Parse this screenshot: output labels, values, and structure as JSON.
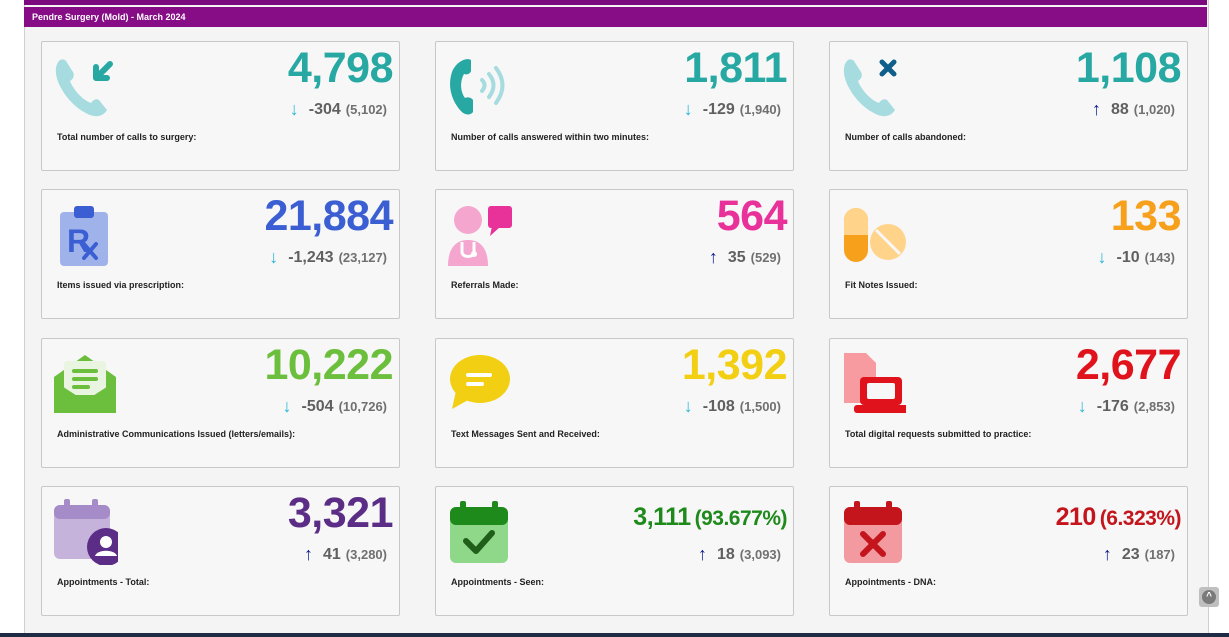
{
  "header": {
    "title": "Pendre Surgery (Mold) - March 2024"
  },
  "colors": {
    "header": "#860d86",
    "arrow_down": "#29b6d6",
    "arrow_up": "#0b1c8c"
  },
  "cards": [
    {
      "id": "calls-total",
      "icon": "incoming-call-icon",
      "value": "4,798",
      "pct": "",
      "direction": "down",
      "change": "-304",
      "previous": "(5,102)",
      "label": "Total number of calls to surgery:",
      "color": "#27a8a3"
    },
    {
      "id": "calls-answered",
      "icon": "ringing-phone-icon",
      "value": "1,811",
      "pct": "",
      "direction": "down",
      "change": "-129",
      "previous": "(1,940)",
      "label": "Number of calls answered within two minutes:",
      "color": "#27a8a3"
    },
    {
      "id": "calls-abandoned",
      "icon": "call-abandoned-icon",
      "value": "1,108",
      "pct": "",
      "direction": "up",
      "change": "88",
      "previous": "(1,020)",
      "label": "Number of calls abandoned:",
      "color": "#27a8a3"
    },
    {
      "id": "prescriptions",
      "icon": "prescription-clipboard-icon",
      "value": "21,884",
      "pct": "",
      "direction": "down",
      "change": "-1,243",
      "previous": "(23,127)",
      "label": "Items issued via prescription:",
      "color": "#3b5fd3"
    },
    {
      "id": "referrals",
      "icon": "doctor-chat-icon",
      "value": "564",
      "pct": "",
      "direction": "up",
      "change": "35",
      "previous": "(529)",
      "label": "Referrals Made:",
      "color": "#e8329a"
    },
    {
      "id": "fit-notes",
      "icon": "pills-icon",
      "value": "133",
      "pct": "",
      "direction": "down",
      "change": "-10",
      "previous": "(143)",
      "label": "Fit Notes Issued:",
      "color": "#f7a01c"
    },
    {
      "id": "admin-comms",
      "icon": "envelope-letter-icon",
      "value": "10,222",
      "pct": "",
      "direction": "down",
      "change": "-504",
      "previous": "(10,726)",
      "label": "Administrative Communications Issued (letters/emails):",
      "color": "#6bbf3c"
    },
    {
      "id": "text-messages",
      "icon": "speech-bubble-icon",
      "value": "1,392",
      "pct": "",
      "direction": "down",
      "change": "-108",
      "previous": "(1,500)",
      "label": "Text Messages Sent and Received:",
      "color": "#f2cf13"
    },
    {
      "id": "digital-requests",
      "icon": "laptop-document-icon",
      "value": "2,677",
      "pct": "",
      "direction": "down",
      "change": "-176",
      "previous": "(2,853)",
      "label": "Total digital requests submitted to practice:",
      "color": "#e0121c"
    },
    {
      "id": "appt-total",
      "icon": "calendar-user-icon",
      "value": "3,321",
      "pct": "",
      "direction": "up",
      "change": "41",
      "previous": "(3,280)",
      "label": "Appointments - Total:",
      "color": "#5b2d86"
    },
    {
      "id": "appt-seen",
      "icon": "calendar-check-icon",
      "value": "3,111",
      "pct": "(93.677%)",
      "direction": "up",
      "change": "18",
      "previous": "(3,093)",
      "label": "Appointments - Seen:",
      "color": "#1f8a1c"
    },
    {
      "id": "appt-dna",
      "icon": "calendar-cross-icon",
      "value": "210",
      "pct": "(6.323%)",
      "direction": "up",
      "change": "23",
      "previous": "(187)",
      "label": "Appointments - DNA:",
      "color": "#c4141c"
    }
  ]
}
